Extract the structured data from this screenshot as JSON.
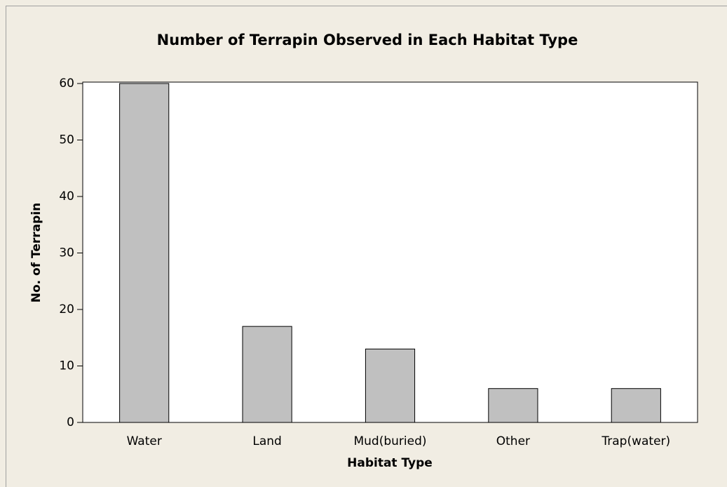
{
  "chart_data": {
    "type": "bar",
    "title": "Number of Terrapin Observed in Each Habitat Type",
    "x_label": "Habitat Type",
    "y_label": "No. of Terrapin",
    "categories": [
      "Water",
      "Land",
      "Mud(buried)",
      "Other",
      "Trap(water)"
    ],
    "values": [
      60,
      17,
      13,
      6,
      6
    ],
    "color": "#c0c0c0",
    "ylim": [
      0,
      60
    ],
    "yticks": [
      0,
      10,
      20,
      30,
      40,
      50,
      60
    ],
    "grid": false
  }
}
